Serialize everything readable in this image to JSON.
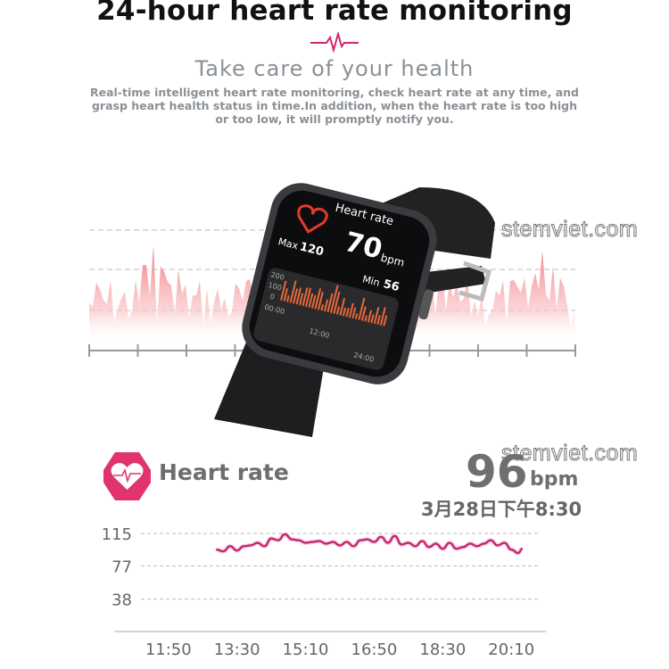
{
  "header": {
    "title": "24-hour heart rate monitoring",
    "subtitle": "Take care of your health",
    "description": "Real-time intelligent heart rate monitoring, check heart rate at any time, and grasp heart health status in time.In addition, when the heart rate is too high or too low, it will promptly notify you.",
    "accent_color": "#d6246e"
  },
  "watermark": "stemviet.com",
  "watch_screen": {
    "title": "Heart rate",
    "value": "70",
    "unit": "bpm",
    "max_label": "Max",
    "max_value": "120",
    "min_label": "Min",
    "min_value": "56",
    "y_ticks": [
      "200",
      "100",
      "0"
    ],
    "x_ticks": [
      "00:00",
      "12:00",
      "24:00"
    ],
    "bar_color": "#e8673a"
  },
  "heart_rate_card": {
    "icon": "heart-pulse-icon",
    "label": "Heart rate",
    "value": "96",
    "unit": "bpm",
    "timestamp": "3月28日下午8:30",
    "icon_color": "#e0336f"
  },
  "chart_data": {
    "type": "line",
    "y_ticks": [
      "115",
      "77",
      "38"
    ],
    "x_ticks": [
      "11:50",
      "13:30",
      "15:10",
      "16:50",
      "18:30",
      "20:10"
    ],
    "ylim": [
      0,
      120
    ],
    "xlim": [
      "11:10",
      "20:50"
    ],
    "grid": "dashed horizontal",
    "line_color": "#c2276e",
    "series": [
      {
        "x": [
          "13:00",
          "13:10",
          "13:20",
          "13:30",
          "13:40",
          "13:50",
          "14:00",
          "14:10",
          "14:20",
          "14:30",
          "14:40",
          "14:50",
          "15:00",
          "15:10",
          "15:20",
          "15:30",
          "15:40",
          "15:50",
          "16:00",
          "16:10",
          "16:20",
          "16:30",
          "16:40",
          "16:50",
          "17:00",
          "17:10",
          "17:20",
          "17:30",
          "17:40",
          "17:50",
          "18:00",
          "18:10",
          "18:20",
          "18:30",
          "18:40",
          "18:50",
          "19:00",
          "19:10",
          "19:20",
          "19:30",
          "19:40",
          "19:50",
          "20:00",
          "20:10",
          "20:20",
          "20:26"
        ],
        "y": [
          96,
          94,
          100,
          95,
          100,
          101,
          104,
          100,
          109,
          107,
          114,
          108,
          107,
          104,
          105,
          106,
          103,
          105,
          101,
          105,
          100,
          107,
          108,
          105,
          111,
          104,
          112,
          102,
          104,
          100,
          106,
          99,
          103,
          97,
          104,
          97,
          99,
          103,
          100,
          103,
          107,
          101,
          104,
          96,
          92,
          97
        ]
      }
    ]
  }
}
